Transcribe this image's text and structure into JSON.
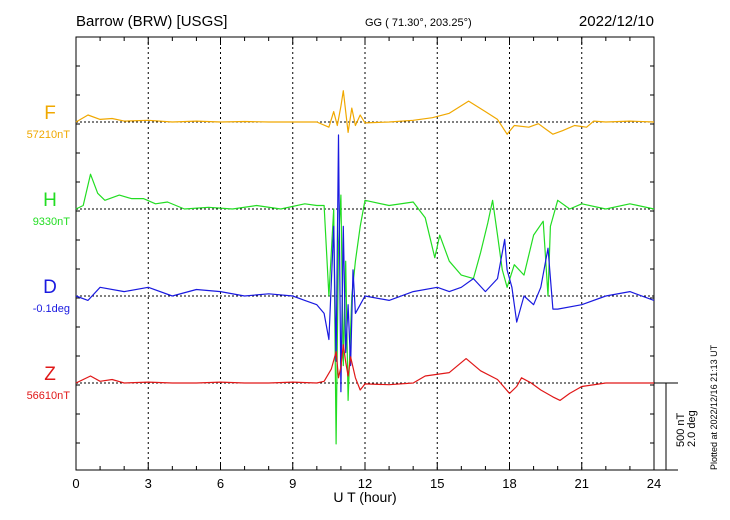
{
  "header": {
    "station": "Barrow (BRW)  [USGS]",
    "coords": "GG ( 71.30°, 203.25°)",
    "date": "2022/12/10"
  },
  "footer": {
    "plotted": "Plotted at 2022/12/16 21:13 UT"
  },
  "scale_bar": {
    "line1": "500 nT",
    "line2": "2.0 deg"
  },
  "chart_data": {
    "type": "line",
    "xlabel": "U T (hour)",
    "xlim": [
      0,
      24
    ],
    "xticks": [
      "0",
      "3",
      "6",
      "9",
      "12",
      "15",
      "18",
      "21",
      "24"
    ],
    "grid": true,
    "series": [
      {
        "name": "F",
        "baseline_label": "57210nT",
        "color": "#f0a800",
        "unit": "nT",
        "points": [
          [
            0,
            0
          ],
          [
            0.5,
            40
          ],
          [
            1,
            15
          ],
          [
            1.5,
            20
          ],
          [
            2,
            5
          ],
          [
            3,
            10
          ],
          [
            4,
            0
          ],
          [
            5,
            5
          ],
          [
            6,
            0
          ],
          [
            7,
            3
          ],
          [
            8,
            0
          ],
          [
            9,
            0
          ],
          [
            10,
            0
          ],
          [
            10.5,
            -30
          ],
          [
            10.7,
            60
          ],
          [
            10.85,
            -20
          ],
          [
            11,
            90
          ],
          [
            11.1,
            180
          ],
          [
            11.2,
            60
          ],
          [
            11.3,
            -60
          ],
          [
            11.45,
            80
          ],
          [
            11.6,
            -20
          ],
          [
            11.8,
            40
          ],
          [
            12,
            -5
          ],
          [
            13,
            0
          ],
          [
            14,
            10
          ],
          [
            14.8,
            25
          ],
          [
            15.5,
            50
          ],
          [
            16.3,
            120
          ],
          [
            17,
            60
          ],
          [
            17.5,
            15
          ],
          [
            17.9,
            -70
          ],
          [
            18.2,
            -20
          ],
          [
            18.8,
            -30
          ],
          [
            19.2,
            -10
          ],
          [
            19.5,
            -40
          ],
          [
            19.8,
            -70
          ],
          [
            20.2,
            -50
          ],
          [
            20.7,
            -20
          ],
          [
            21.2,
            -30
          ],
          [
            21.5,
            5
          ],
          [
            22,
            0
          ],
          [
            23,
            5
          ],
          [
            24,
            0
          ]
        ]
      },
      {
        "name": "H",
        "baseline_label": "9330nT",
        "color": "#22dd22",
        "unit": "nT",
        "points": [
          [
            0,
            0
          ],
          [
            0.3,
            20
          ],
          [
            0.6,
            200
          ],
          [
            0.9,
            90
          ],
          [
            1.2,
            50
          ],
          [
            1.8,
            80
          ],
          [
            2.3,
            60
          ],
          [
            2.8,
            60
          ],
          [
            3.3,
            30
          ],
          [
            3.8,
            40
          ],
          [
            4.5,
            0
          ],
          [
            5.5,
            10
          ],
          [
            6.5,
            0
          ],
          [
            7.5,
            20
          ],
          [
            8.5,
            0
          ],
          [
            9.5,
            30
          ],
          [
            10,
            20
          ],
          [
            10.3,
            20
          ],
          [
            10.5,
            -500
          ],
          [
            10.7,
            0
          ],
          [
            10.8,
            -1350
          ],
          [
            10.9,
            -200
          ],
          [
            11,
            80
          ],
          [
            11.1,
            -900
          ],
          [
            11.2,
            -300
          ],
          [
            11.3,
            -1100
          ],
          [
            11.45,
            -500
          ],
          [
            11.6,
            -300
          ],
          [
            11.8,
            -100
          ],
          [
            12,
            50
          ],
          [
            13,
            20
          ],
          [
            14,
            40
          ],
          [
            14.5,
            -50
          ],
          [
            14.9,
            -280
          ],
          [
            15.1,
            -150
          ],
          [
            15.5,
            -300
          ],
          [
            16,
            -380
          ],
          [
            16.5,
            -400
          ],
          [
            16.8,
            -250
          ],
          [
            17.1,
            -80
          ],
          [
            17.3,
            50
          ],
          [
            17.5,
            -150
          ],
          [
            17.7,
            -350
          ],
          [
            17.9,
            -450
          ],
          [
            18.2,
            -320
          ],
          [
            18.6,
            -380
          ],
          [
            19,
            -150
          ],
          [
            19.4,
            -70
          ],
          [
            19.6,
            -500
          ],
          [
            19.7,
            -100
          ],
          [
            20,
            50
          ],
          [
            20.5,
            0
          ],
          [
            21,
            30
          ],
          [
            22,
            0
          ],
          [
            23,
            30
          ],
          [
            24,
            0
          ]
        ]
      },
      {
        "name": "D",
        "baseline_label": "-0.1deg",
        "color": "#1a1ae0",
        "unit": "deg",
        "points": [
          [
            0,
            0
          ],
          [
            0.5,
            -0.1
          ],
          [
            1,
            0.2
          ],
          [
            2,
            0.1
          ],
          [
            3,
            0.2
          ],
          [
            4,
            0
          ],
          [
            5,
            0.15
          ],
          [
            6,
            0.1
          ],
          [
            7,
            0
          ],
          [
            8,
            0.05
          ],
          [
            9,
            0
          ],
          [
            9.5,
            -0.1
          ],
          [
            10,
            -0.2
          ],
          [
            10.3,
            -0.4
          ],
          [
            10.5,
            -1.0
          ],
          [
            10.7,
            1.6
          ],
          [
            10.8,
            -1.5
          ],
          [
            10.9,
            3.7
          ],
          [
            11,
            -2.2
          ],
          [
            11.1,
            1.6
          ],
          [
            11.2,
            -1.3
          ],
          [
            11.3,
            -0.2
          ],
          [
            11.4,
            -1.6
          ],
          [
            11.5,
            0.6
          ],
          [
            11.6,
            -0.4
          ],
          [
            11.8,
            -0.2
          ],
          [
            12,
            0
          ],
          [
            13,
            -0.1
          ],
          [
            14,
            0.1
          ],
          [
            15,
            0.2
          ],
          [
            15.5,
            0.1
          ],
          [
            16,
            0.2
          ],
          [
            16.5,
            0.4
          ],
          [
            17,
            0.1
          ],
          [
            17.5,
            0.4
          ],
          [
            17.8,
            1.3
          ],
          [
            17.9,
            0.6
          ],
          [
            18.1,
            0.2
          ],
          [
            18.3,
            -0.6
          ],
          [
            18.6,
            0
          ],
          [
            19,
            -0.2
          ],
          [
            19.3,
            0.2
          ],
          [
            19.6,
            1.1
          ],
          [
            19.8,
            -0.3
          ],
          [
            20,
            -0.3
          ],
          [
            21,
            -0.2
          ],
          [
            22,
            0
          ],
          [
            23,
            0.1
          ],
          [
            24,
            -0.1
          ]
        ]
      },
      {
        "name": "Z",
        "baseline_label": "56610nT",
        "color": "#e01818",
        "unit": "nT",
        "points": [
          [
            0,
            0
          ],
          [
            0.6,
            40
          ],
          [
            1,
            10
          ],
          [
            1.5,
            20
          ],
          [
            2,
            0
          ],
          [
            3,
            5
          ],
          [
            4,
            0
          ],
          [
            5,
            0
          ],
          [
            6,
            5
          ],
          [
            7,
            0
          ],
          [
            8,
            0
          ],
          [
            9,
            5
          ],
          [
            10,
            0
          ],
          [
            10.3,
            10
          ],
          [
            10.6,
            80
          ],
          [
            10.8,
            180
          ],
          [
            10.9,
            30
          ],
          [
            11,
            90
          ],
          [
            11.1,
            220
          ],
          [
            11.2,
            120
          ],
          [
            11.3,
            40
          ],
          [
            11.4,
            150
          ],
          [
            11.6,
            30
          ],
          [
            11.8,
            -40
          ],
          [
            12,
            -5
          ],
          [
            13,
            -10
          ],
          [
            14,
            0
          ],
          [
            14.5,
            40
          ],
          [
            15.5,
            60
          ],
          [
            16.2,
            140
          ],
          [
            16.8,
            70
          ],
          [
            17.5,
            20
          ],
          [
            18,
            -60
          ],
          [
            18.3,
            -20
          ],
          [
            18.5,
            30
          ],
          [
            18.9,
            0
          ],
          [
            19.3,
            -40
          ],
          [
            19.8,
            -80
          ],
          [
            20.1,
            -100
          ],
          [
            20.5,
            -60
          ],
          [
            21,
            -20
          ],
          [
            22,
            0
          ],
          [
            23,
            0
          ],
          [
            24,
            0
          ]
        ]
      }
    ]
  }
}
